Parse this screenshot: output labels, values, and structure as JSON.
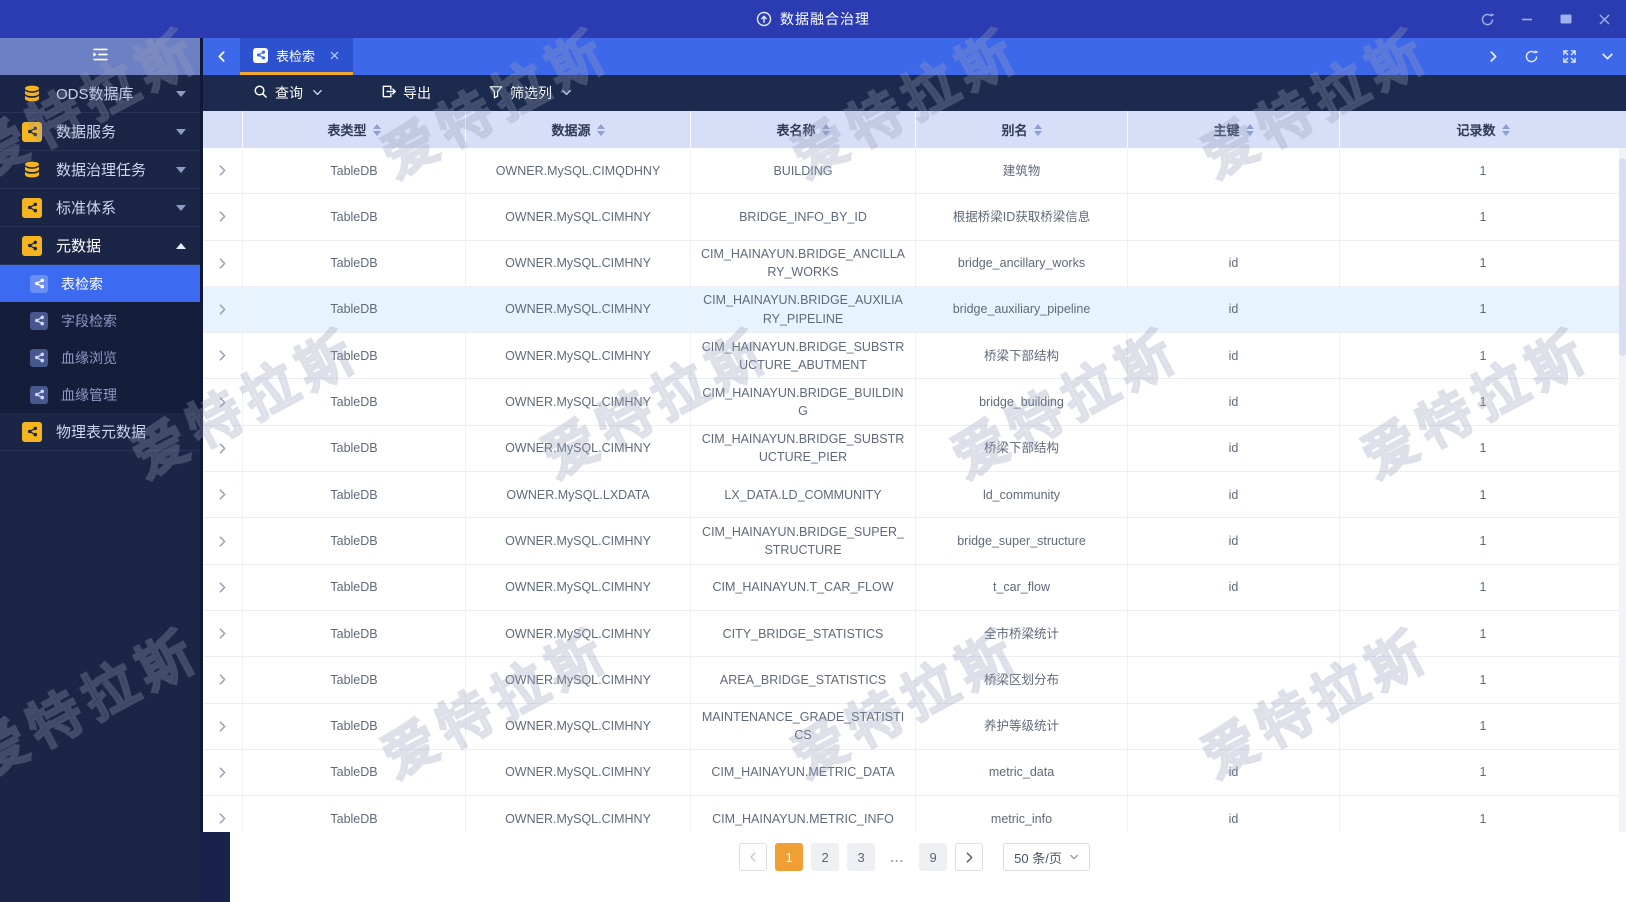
{
  "watermark": {
    "text": "爱特拉斯"
  },
  "titlebar": {
    "title": "数据融合治理",
    "controls": [
      "refresh",
      "minimize",
      "maximize",
      "close"
    ]
  },
  "tabbar": {
    "active_tab": "表检索",
    "right_icons": [
      "arrow-right",
      "refresh",
      "fullscreen",
      "chevron-down"
    ]
  },
  "toolbar": {
    "query": "查询",
    "export": "导出",
    "filter_columns": "筛选列"
  },
  "sidebar": {
    "items": [
      {
        "label": "ODS数据库",
        "icon": "database-icon",
        "state": "collapsed"
      },
      {
        "label": "数据服务",
        "icon": "share-icon",
        "state": "collapsed"
      },
      {
        "label": "数据治理任务",
        "icon": "database-icon",
        "state": "collapsed"
      },
      {
        "label": "标准体系",
        "icon": "share-icon",
        "state": "collapsed"
      },
      {
        "label": "元数据",
        "icon": "share-icon",
        "state": "expanded",
        "children": [
          "表检索",
          "字段检索",
          "血缘浏览",
          "血缘管理"
        ],
        "active_child": "表检索"
      },
      {
        "label": "物理表元数据",
        "icon": "share-icon"
      }
    ]
  },
  "table": {
    "columns": [
      "表类型",
      "数据源",
      "表名称",
      "别名",
      "主键",
      "记录数"
    ],
    "highlighted_row_index": 3,
    "rows": [
      [
        "TableDB",
        "OWNER.MySQL.CIMQDHNY",
        "BUILDING",
        "建筑物",
        "",
        "1"
      ],
      [
        "TableDB",
        "OWNER.MySQL.CIMHNY",
        "BRIDGE_INFO_BY_ID",
        "根据桥梁ID获取桥梁信息",
        "",
        "1"
      ],
      [
        "TableDB",
        "OWNER.MySQL.CIMHNY",
        "CIM_HAINAYUN.BRIDGE_ANCILLARY_WORKS",
        "bridge_ancillary_works",
        "id",
        "1"
      ],
      [
        "TableDB",
        "OWNER.MySQL.CIMHNY",
        "CIM_HAINAYUN.BRIDGE_AUXILIARY_PIPELINE",
        "bridge_auxiliary_pipeline",
        "id",
        "1"
      ],
      [
        "TableDB",
        "OWNER.MySQL.CIMHNY",
        "CIM_HAINAYUN.BRIDGE_SUBSTRUCTURE_ABUTMENT",
        "桥梁下部结构",
        "id",
        "1"
      ],
      [
        "TableDB",
        "OWNER.MySQL.CIMHNY",
        "CIM_HAINAYUN.BRIDGE_BUILDING",
        "bridge_building",
        "id",
        "1"
      ],
      [
        "TableDB",
        "OWNER.MySQL.CIMHNY",
        "CIM_HAINAYUN.BRIDGE_SUBSTRUCTURE_PIER",
        "桥梁下部结构",
        "id",
        "1"
      ],
      [
        "TableDB",
        "OWNER.MySQL.LXDATA",
        "LX_DATA.LD_COMMUNITY",
        "ld_community",
        "id",
        "1"
      ],
      [
        "TableDB",
        "OWNER.MySQL.CIMHNY",
        "CIM_HAINAYUN.BRIDGE_SUPER_STRUCTURE",
        "bridge_super_structure",
        "id",
        "1"
      ],
      [
        "TableDB",
        "OWNER.MySQL.CIMHNY",
        "CIM_HAINAYUN.T_CAR_FLOW",
        "t_car_flow",
        "id",
        "1"
      ],
      [
        "TableDB",
        "OWNER.MySQL.CIMHNY",
        "CITY_BRIDGE_STATISTICS",
        "全市桥梁统计",
        "",
        "1"
      ],
      [
        "TableDB",
        "OWNER.MySQL.CIMHNY",
        "AREA_BRIDGE_STATISTICS",
        "桥梁区划分布",
        "",
        "1"
      ],
      [
        "TableDB",
        "OWNER.MySQL.CIMHNY",
        "MAINTENANCE_GRADE_STATISTICS",
        "养护等级统计",
        "",
        "1"
      ],
      [
        "TableDB",
        "OWNER.MySQL.CIMHNY",
        "CIM_HAINAYUN.METRIC_DATA",
        "metric_data",
        "id",
        "1"
      ],
      [
        "TableDB",
        "OWNER.MySQL.CIMHNY",
        "CIM_HAINAYUN.METRIC_INFO",
        "metric_info",
        "id",
        "1"
      ]
    ]
  },
  "pagination": {
    "pages": [
      "1",
      "2",
      "3",
      "...",
      "9"
    ],
    "active_page": "1",
    "page_size": "50 条/页"
  },
  "colors": {
    "topbar": "#2b3cb2",
    "tabbar": "#3e68ea",
    "active_tab": "#2d52cf",
    "tab_accent": "#f0a72c",
    "toolbar": "#1b2a4d",
    "sidebar": "#1b2646",
    "sidebar_selected": "#3c6af0",
    "menu_icon_yellow": "#f6b51e",
    "table_header_bg": "#d7def8",
    "row_highlight": "#e8f4fd",
    "pagination_active": "#ef9f33"
  }
}
